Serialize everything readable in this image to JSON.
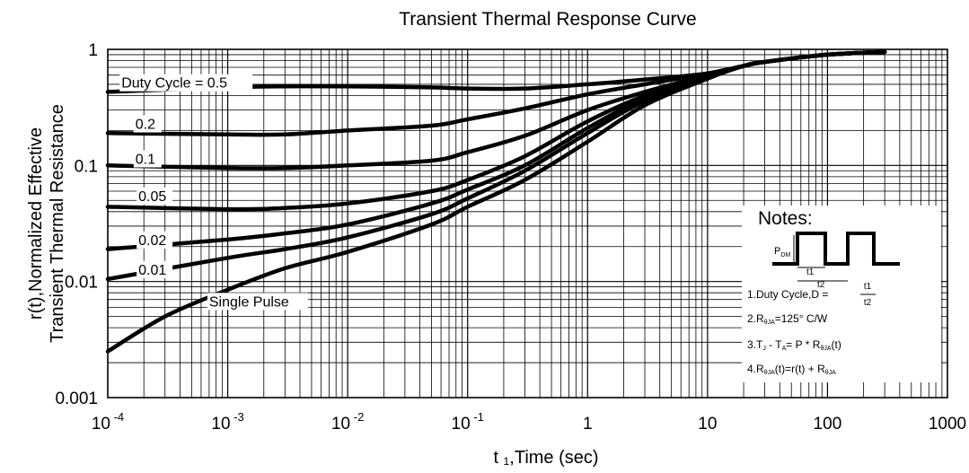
{
  "chart_data": {
    "type": "line",
    "title": "Transient Thermal Response Curve",
    "xlabel": "t ₁,Time (sec)",
    "ylabel_line1": "r(t),Normalized Effective",
    "ylabel_line2": "Transient Thermal Resistance",
    "x_scale": "log",
    "y_scale": "log",
    "xlim": [
      0.0001,
      1000
    ],
    "ylim": [
      0.001,
      1
    ],
    "grid": true,
    "x_ticks": [
      {
        "base": "10",
        "exp": "-4"
      },
      {
        "base": "10",
        "exp": "-3"
      },
      {
        "base": "10",
        "exp": "-2"
      },
      {
        "base": "10",
        "exp": "-1"
      },
      {
        "base": "1",
        "exp": ""
      },
      {
        "base": "10",
        "exp": ""
      },
      {
        "base": "100",
        "exp": ""
      },
      {
        "base": "1000",
        "exp": ""
      }
    ],
    "y_ticks": [
      "0.001",
      "0.01",
      "0.1",
      "1"
    ],
    "series": [
      {
        "name": "Duty Cycle = 0.5",
        "x": [
          0.0001,
          0.001,
          0.003,
          0.01,
          0.05,
          0.1,
          0.3,
          1,
          3,
          10,
          20,
          30,
          100,
          300
        ],
        "y": [
          0.43,
          0.47,
          0.48,
          0.48,
          0.47,
          0.46,
          0.46,
          0.5,
          0.55,
          0.62,
          0.72,
          0.78,
          0.9,
          0.95
        ]
      },
      {
        "name": "0.2",
        "x": [
          0.0001,
          0.001,
          0.003,
          0.01,
          0.05,
          0.1,
          0.3,
          1,
          3,
          10,
          20,
          30,
          100,
          300
        ],
        "y": [
          0.19,
          0.185,
          0.185,
          0.2,
          0.22,
          0.25,
          0.31,
          0.41,
          0.5,
          0.62,
          0.72,
          0.78,
          0.9,
          0.95
        ]
      },
      {
        "name": "0.1",
        "x": [
          0.0001,
          0.001,
          0.003,
          0.01,
          0.05,
          0.1,
          0.3,
          1,
          3,
          10,
          20,
          30,
          100,
          300
        ],
        "y": [
          0.1,
          0.095,
          0.095,
          0.1,
          0.11,
          0.13,
          0.18,
          0.3,
          0.43,
          0.6,
          0.72,
          0.78,
          0.9,
          0.95
        ]
      },
      {
        "name": "0.05",
        "x": [
          0.0001,
          0.001,
          0.003,
          0.01,
          0.05,
          0.1,
          0.3,
          1,
          3,
          10,
          20,
          30,
          100,
          300
        ],
        "y": [
          0.044,
          0.042,
          0.043,
          0.047,
          0.06,
          0.075,
          0.12,
          0.24,
          0.4,
          0.59,
          0.72,
          0.78,
          0.9,
          0.95
        ]
      },
      {
        "name": "0.02",
        "x": [
          0.0001,
          0.001,
          0.003,
          0.01,
          0.05,
          0.1,
          0.3,
          1,
          3,
          10,
          20,
          30,
          100,
          300
        ],
        "y": [
          0.019,
          0.023,
          0.026,
          0.031,
          0.047,
          0.062,
          0.1,
          0.21,
          0.38,
          0.58,
          0.72,
          0.78,
          0.9,
          0.95
        ]
      },
      {
        "name": "0.01",
        "x": [
          0.0001,
          0.001,
          0.003,
          0.01,
          0.05,
          0.1,
          0.3,
          1,
          3,
          10,
          20,
          30,
          100,
          300
        ],
        "y": [
          0.0105,
          0.016,
          0.019,
          0.024,
          0.038,
          0.052,
          0.09,
          0.19,
          0.36,
          0.57,
          0.72,
          0.78,
          0.9,
          0.95
        ]
      },
      {
        "name": "Single Pulse",
        "x": [
          0.0001,
          0.0003,
          0.001,
          0.003,
          0.01,
          0.05,
          0.1,
          0.3,
          1,
          3,
          10,
          20,
          30,
          100,
          300
        ],
        "y": [
          0.0025,
          0.005,
          0.0085,
          0.013,
          0.018,
          0.031,
          0.044,
          0.075,
          0.16,
          0.33,
          0.56,
          0.72,
          0.78,
          0.9,
          0.95
        ]
      }
    ],
    "notes": {
      "title": "Notes:",
      "pdm_label": "P",
      "pdm_sub": "DM",
      "t1_label": "t1",
      "t2_label": "t2",
      "lines": [
        {
          "id": "duty",
          "text": "1.Duty Cycle,D =",
          "frac_num": "t1",
          "frac_den": "t2"
        },
        {
          "id": "rja",
          "text": "2.R",
          "sub": "θJA",
          "rest": "=125°  C/W"
        },
        {
          "id": "tj",
          "text": "3.T",
          "sub": "J",
          "mid": " -  T",
          "sub2": "A",
          "rest": "= P * R",
          "sub3": "θJA",
          "end": "(t)"
        },
        {
          "id": "rjat",
          "text": "4.R",
          "sub": "θJA",
          "rest": "(t)=r(t) + R",
          "sub2": "θJA"
        }
      ]
    }
  }
}
